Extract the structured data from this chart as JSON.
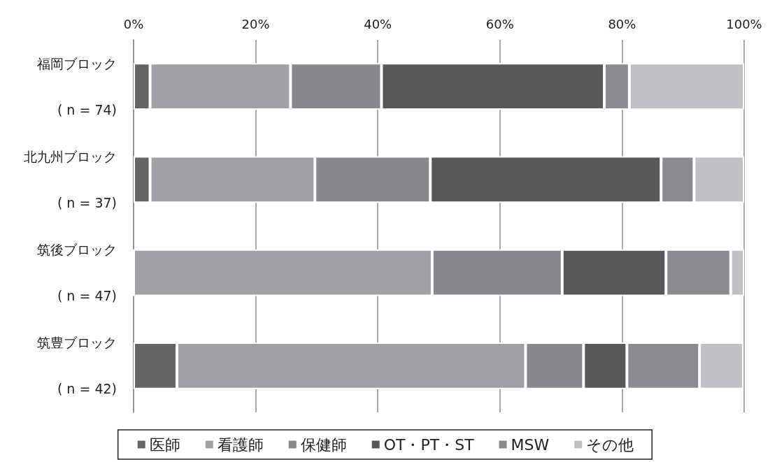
{
  "chart_data": {
    "type": "bar",
    "orientation": "horizontal",
    "stacked": true,
    "categories": [
      "福岡ブロック\n( n = 74)",
      "北九州ブロック\n( n = 37)",
      "筑後ブロック\n( n = 47)",
      "筑豊ブロック\n( n = 42)"
    ],
    "series": [
      {
        "name": "医師",
        "color": "#646466",
        "values": [
          2.7,
          2.7,
          0,
          7.1
        ]
      },
      {
        "name": "看護師",
        "color": "#a0a1a4",
        "values": [
          23.0,
          27.0,
          48.9,
          57.1
        ]
      },
      {
        "name": "保健師",
        "color": "#87888b",
        "values": [
          14.9,
          18.9,
          21.3,
          9.5
        ]
      },
      {
        "name": "OT・PT・ST",
        "color": "#58585a",
        "values": [
          36.5,
          37.8,
          17.0,
          7.1
        ]
      },
      {
        "name": "MSW",
        "color": "#8a8b8e",
        "values": [
          4.1,
          5.4,
          10.6,
          11.9
        ]
      },
      {
        "name": "その他",
        "color": "#bfc0c3",
        "values": [
          18.8,
          8.2,
          2.2,
          7.2
        ]
      }
    ],
    "xlim": [
      0,
      100
    ],
    "xticks": [
      {
        "value": 0,
        "label": "0%"
      },
      {
        "value": 20,
        "label": "20%"
      },
      {
        "value": 40,
        "label": "40%"
      },
      {
        "value": 60,
        "label": "60%"
      },
      {
        "value": 80,
        "label": "80%"
      },
      {
        "value": 100,
        "label": "100%"
      }
    ],
    "grid": "x",
    "legend": "bottom"
  }
}
